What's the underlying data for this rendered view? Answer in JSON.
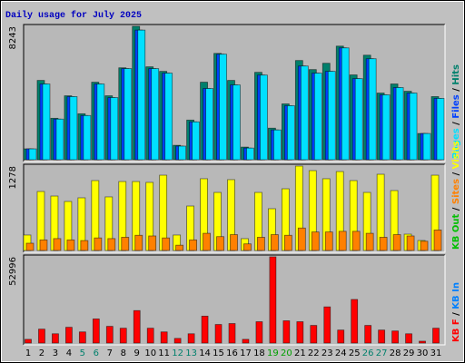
{
  "title": "Daily usage for July 2025",
  "categories": [
    "1",
    "2",
    "3",
    "4",
    "5",
    "6",
    "7",
    "8",
    "9",
    "10",
    "11",
    "12",
    "13",
    "14",
    "15",
    "16",
    "17",
    "18",
    "19",
    "20",
    "21",
    "22",
    "23",
    "24",
    "25",
    "26",
    "27",
    "28",
    "29",
    "30",
    "31"
  ],
  "category_colors": [
    "#000000",
    "#000000",
    "#000000",
    "#000000",
    "#00806c",
    "#00806c",
    "#000000",
    "#000000",
    "#000000",
    "#000000",
    "#000000",
    "#00806c",
    "#00806c",
    "#000000",
    "#000000",
    "#000000",
    "#000000",
    "#000000",
    "#00a000",
    "#00a000",
    "#000000",
    "#000000",
    "#000000",
    "#000000",
    "#000000",
    "#00806c",
    "#00806c",
    "#000000",
    "#000000",
    "#000000",
    "#000000"
  ],
  "legend_separator": " / ",
  "chart_data": [
    {
      "type": "bar",
      "ylim": [
        0,
        8243
      ],
      "yticks": [
        8243
      ],
      "series": [
        {
          "name": "Pages",
          "color": "#00e0ff",
          "values": [
            670,
            4680,
            2510,
            3900,
            2730,
            4680,
            3840,
            5630,
            8010,
            5630,
            5350,
            840,
            2340,
            4400,
            6520,
            4620,
            720,
            5230,
            1840,
            3340,
            5790,
            5350,
            5460,
            6910,
            5010,
            6240,
            4010,
            4460,
            4120,
            1620,
            3790
          ]
        },
        {
          "name": "Files",
          "color": "#0040ff",
          "values": [
            670,
            4680,
            2510,
            3900,
            2730,
            4680,
            3840,
            5630,
            8010,
            5630,
            5350,
            840,
            2340,
            4400,
            6520,
            4620,
            720,
            5230,
            1840,
            3340,
            5790,
            5350,
            5460,
            6910,
            5010,
            6240,
            4010,
            4460,
            4120,
            1620,
            3790
          ]
        },
        {
          "name": "Hits",
          "color": "#00806c",
          "values": [
            670,
            4900,
            2560,
            3950,
            2840,
            4790,
            3950,
            5680,
            8243,
            5740,
            5460,
            890,
            2450,
            4790,
            6570,
            4900,
            780,
            5400,
            1950,
            3450,
            6130,
            5570,
            5960,
            7020,
            5240,
            6460,
            4120,
            4680,
            4230,
            1620,
            3900
          ]
        }
      ]
    },
    {
      "type": "bar",
      "ylim": [
        0,
        1278
      ],
      "yticks": [
        1278
      ],
      "series": [
        {
          "name": "KB Out",
          "color": "#00c000"
        },
        {
          "name": "Sites",
          "color": "#ff8000",
          "values": [
            110,
            160,
            180,
            160,
            150,
            190,
            180,
            200,
            230,
            220,
            190,
            80,
            160,
            260,
            210,
            240,
            100,
            200,
            240,
            230,
            340,
            280,
            280,
            290,
            290,
            260,
            200,
            240,
            220,
            140,
            310
          ]
        },
        {
          "name": "Visits",
          "color": "#ffff00",
          "values": [
            234,
            893,
            824,
            742,
            797,
            1058,
            811,
            1044,
            1044,
            1031,
            1140,
            234,
            673,
            1086,
            879,
            1072,
            179,
            879,
            632,
            934,
            1278,
            1209,
            1086,
            1195,
            1058,
            879,
            1154,
            907,
            247,
            151,
            1140
          ]
        }
      ]
    },
    {
      "type": "bar",
      "ylim": [
        0,
        52996
      ],
      "yticks": [
        52996
      ],
      "series": [
        {
          "name": "KB F",
          "color": "#ff0000",
          "values": [
            2280,
            8550,
            5700,
            9690,
            6840,
            14820,
            10260,
            9120,
            19950,
            9120,
            6840,
            2850,
            5700,
            16530,
            11400,
            11970,
            2280,
            13110,
            52996,
            13680,
            13110,
            10830,
            22230,
            7980,
            26790,
            10830,
            7980,
            7410,
            5700,
            1140,
            9120
          ]
        },
        {
          "name": "KB In",
          "color": "#0080ff"
        }
      ]
    }
  ]
}
